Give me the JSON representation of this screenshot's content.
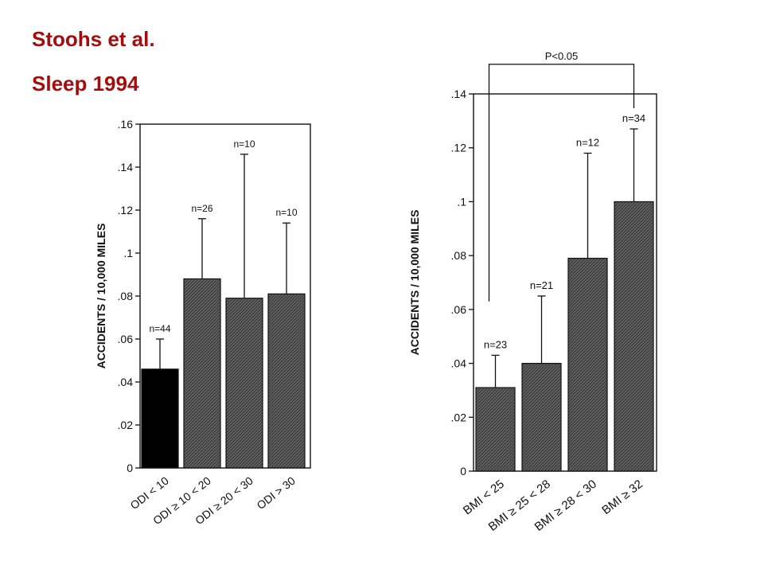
{
  "heading": {
    "line1": "Stoohs et al.",
    "line2": "Sleep 1994"
  },
  "colors": {
    "heading": "#a50d0d",
    "bar_solid": "#000000",
    "bar_hatched": "#5e5e5e"
  },
  "chart_data": [
    {
      "type": "bar",
      "ylabel": "ACCIDENTS / 10,000 MILES",
      "ylim": [
        0,
        0.16
      ],
      "yticks": [
        {
          "value": 0,
          "label": "0"
        },
        {
          "value": 0.02,
          "label": ".02"
        },
        {
          "value": 0.04,
          "label": ".04"
        },
        {
          "value": 0.06,
          "label": ".06"
        },
        {
          "value": 0.08,
          "label": ".08"
        },
        {
          "value": 0.1,
          "label": ".1"
        },
        {
          "value": 0.12,
          "label": ".12"
        },
        {
          "value": 0.14,
          "label": ".14"
        },
        {
          "value": 0.16,
          "label": ".16"
        }
      ],
      "categories": [
        "ODI < 10",
        "ODI ≥ 10 < 20",
        "ODI ≥ 20 < 30",
        "ODI > 30"
      ],
      "values": [
        0.046,
        0.088,
        0.079,
        0.081
      ],
      "error_upper": [
        0.06,
        0.116,
        0.146,
        0.114
      ],
      "n_labels": [
        "n=44",
        "n=26",
        "n=10",
        "n=10"
      ],
      "bar_fill": [
        "solid",
        "hatched",
        "hatched",
        "hatched"
      ]
    },
    {
      "type": "bar",
      "ylabel": "ACCIDENTS / 10,000 MILES",
      "ylim": [
        0,
        0.14
      ],
      "yticks": [
        {
          "value": 0,
          "label": "0"
        },
        {
          "value": 0.02,
          "label": ".02"
        },
        {
          "value": 0.04,
          "label": ".04"
        },
        {
          "value": 0.06,
          "label": ".06"
        },
        {
          "value": 0.08,
          "label": ".08"
        },
        {
          "value": 0.1,
          "label": ".1"
        },
        {
          "value": 0.12,
          "label": ".12"
        },
        {
          "value": 0.14,
          "label": ".14"
        }
      ],
      "categories": [
        "BMI < 25",
        "BMI ≥ 25 < 28",
        "BMI ≥ 28 < 30",
        "BMI ≥ 32"
      ],
      "values": [
        0.031,
        0.04,
        0.079,
        0.1
      ],
      "error_upper": [
        0.043,
        0.065,
        0.118,
        0.127
      ],
      "n_labels": [
        "n=23",
        "n=21",
        "n=12",
        "n=34"
      ],
      "bar_fill": [
        "hatched",
        "hatched",
        "hatched",
        "hatched"
      ],
      "annotation": {
        "text": "P<0.05",
        "from_category": 0,
        "to_category": 3,
        "bracket_top": 0.151
      }
    }
  ]
}
